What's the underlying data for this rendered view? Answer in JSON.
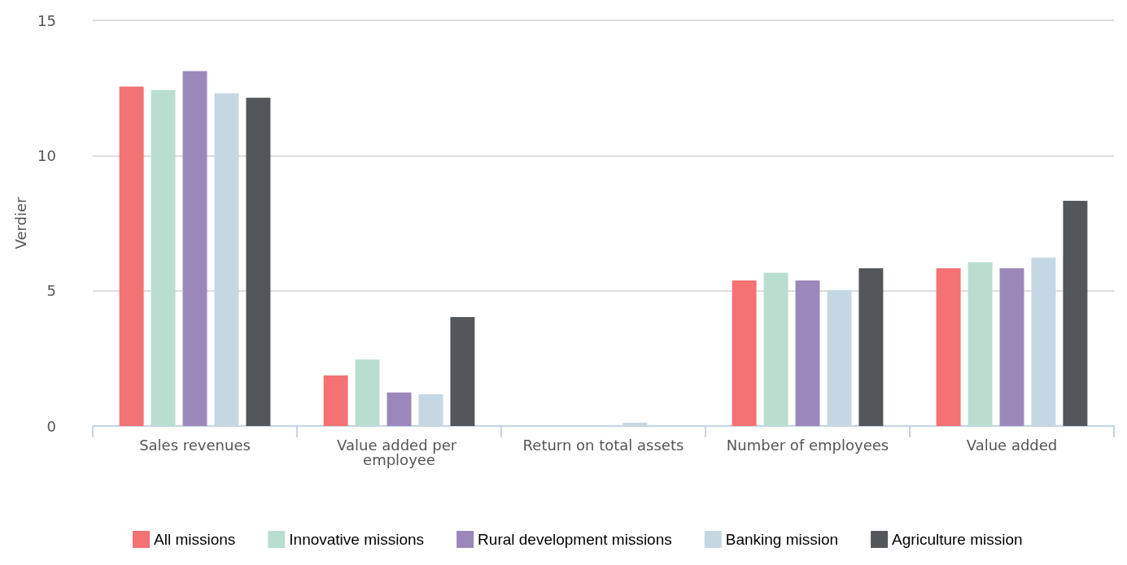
{
  "chart_data": {
    "type": "bar",
    "ylabel": "Verdier",
    "categories": [
      "Sales revenues",
      "Value added per employee",
      "Return on total assets",
      "Number of employees",
      "Value added"
    ],
    "series": [
      {
        "name": "All missions",
        "color": "#f47174",
        "values": [
          12.55,
          1.87,
          0,
          5.38,
          5.83
        ]
      },
      {
        "name": "Innovative missions",
        "color": "#b9ded0",
        "values": [
          12.42,
          2.46,
          0,
          5.67,
          6.06
        ]
      },
      {
        "name": "Rural development missions",
        "color": "#9b88bb",
        "values": [
          13.12,
          1.24,
          0,
          5.38,
          5.83
        ]
      },
      {
        "name": "Banking mission",
        "color": "#c5d7e2",
        "values": [
          12.3,
          1.17,
          0.12,
          5.03,
          6.23
        ]
      },
      {
        "name": "Agriculture mission",
        "color": "#53565b",
        "values": [
          12.14,
          4.03,
          0,
          5.83,
          8.33
        ]
      }
    ],
    "ylim": [
      0,
      15
    ],
    "yticks": [
      0,
      5,
      10,
      15
    ],
    "grid": "y",
    "legend": "bottom left"
  }
}
